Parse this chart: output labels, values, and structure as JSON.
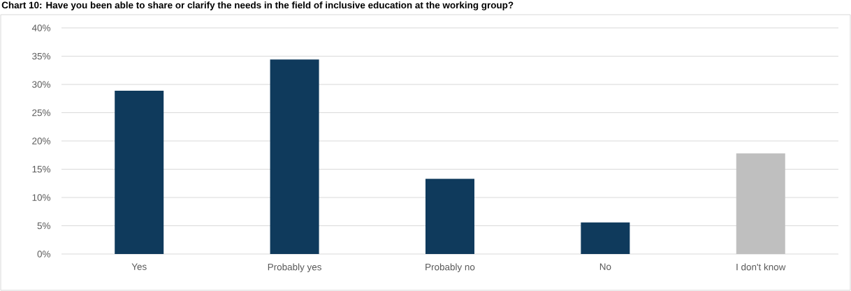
{
  "chart_data": {
    "type": "bar",
    "title": "Chart 10: Have you been able to share or clarify the needs in the field of inclusive education at the working group?",
    "categories": [
      "Yes",
      "Probably yes",
      "Probably no",
      "No",
      "I don't know"
    ],
    "values": [
      28.9,
      34.4,
      13.3,
      5.6,
      17.8
    ],
    "colors": [
      "#0f3a5c",
      "#0f3a5c",
      "#0f3a5c",
      "#0f3a5c",
      "#bfbfbf"
    ],
    "ylim": [
      0,
      40
    ],
    "yticks": [
      {
        "value": 0,
        "label": "0%"
      },
      {
        "value": 5,
        "label": "5%"
      },
      {
        "value": 10,
        "label": "10%"
      },
      {
        "value": 15,
        "label": "15%"
      },
      {
        "value": 20,
        "label": "20%"
      },
      {
        "value": 25,
        "label": "25%"
      },
      {
        "value": 30,
        "label": "30%"
      },
      {
        "value": 35,
        "label": "35%"
      },
      {
        "value": 40,
        "label": "40%"
      }
    ],
    "grid": "y"
  }
}
